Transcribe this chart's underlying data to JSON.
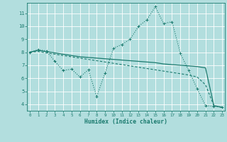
{
  "xlabel": "Humidex (Indice chaleur)",
  "background_color": "#b2dede",
  "grid_color": "#ffffff",
  "line_color": "#1a7a6e",
  "x_ticks": [
    0,
    1,
    2,
    3,
    4,
    5,
    6,
    7,
    8,
    9,
    10,
    11,
    12,
    13,
    14,
    15,
    16,
    17,
    18,
    19,
    20,
    21,
    22,
    23
  ],
  "y_ticks": [
    4,
    5,
    6,
    7,
    8,
    9,
    10,
    11
  ],
  "ylim": [
    3.5,
    11.8
  ],
  "xlim": [
    -0.3,
    23.3
  ],
  "line1_x": [
    0,
    1,
    2,
    3,
    4,
    5,
    6,
    7,
    8,
    9,
    10,
    11,
    12,
    13,
    14,
    15,
    16,
    17,
    18,
    19,
    20,
    21,
    22,
    23
  ],
  "line1_y": [
    8.0,
    8.2,
    8.1,
    7.3,
    6.6,
    6.7,
    6.1,
    6.65,
    4.6,
    6.4,
    8.3,
    8.6,
    9.0,
    10.0,
    10.5,
    11.5,
    10.2,
    10.35,
    7.9,
    6.6,
    5.2,
    3.9,
    3.85,
    3.8
  ],
  "line2_x": [
    0,
    1,
    2,
    3,
    4,
    5,
    6,
    7,
    8,
    9,
    10,
    11,
    12,
    13,
    14,
    15,
    16,
    17,
    18,
    19,
    20,
    21,
    22,
    23
  ],
  "line2_y": [
    8.0,
    8.15,
    8.05,
    7.95,
    7.85,
    7.75,
    7.65,
    7.6,
    7.55,
    7.5,
    7.45,
    7.4,
    7.35,
    7.3,
    7.25,
    7.2,
    7.1,
    7.05,
    7.0,
    6.95,
    6.9,
    6.8,
    3.9,
    3.75
  ],
  "line3_x": [
    0,
    1,
    2,
    3,
    4,
    5,
    6,
    7,
    8,
    9,
    10,
    11,
    12,
    13,
    14,
    15,
    16,
    17,
    18,
    19,
    20,
    21,
    22,
    23
  ],
  "line3_y": [
    8.0,
    8.05,
    7.95,
    7.85,
    7.75,
    7.65,
    7.55,
    7.45,
    7.35,
    7.25,
    7.15,
    7.05,
    6.95,
    6.85,
    6.75,
    6.65,
    6.55,
    6.45,
    6.35,
    6.25,
    6.1,
    5.5,
    3.9,
    3.75
  ]
}
